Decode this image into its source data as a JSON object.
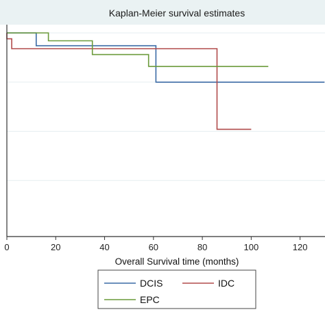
{
  "chart_data": {
    "type": "line",
    "title": "Kaplan-Meier survival estimates",
    "xlabel": "Overall Survival time (months)",
    "ylabel": "",
    "xlim": [
      0,
      130
    ],
    "ylim": [
      0,
      1
    ],
    "x_ticks": [
      0,
      20,
      40,
      60,
      80,
      100,
      120
    ],
    "x_tick_labels": [
      "0",
      "20",
      "40",
      "60",
      "80",
      "100",
      "120"
    ],
    "y_gridlines": [
      0.25,
      0.5,
      0.75,
      1.0
    ],
    "grid": true,
    "legend_position": "bottom",
    "step": true,
    "series": [
      {
        "name": "DCIS",
        "color": "#3a6aa5",
        "x": [
          0,
          12,
          12,
          61,
          61,
          130
        ],
        "y": [
          1.0,
          1.0,
          0.935,
          0.935,
          0.75,
          0.75
        ]
      },
      {
        "name": "IDC",
        "color": "#b04a4a",
        "x": [
          0,
          0,
          2,
          2,
          86,
          86,
          100
        ],
        "y": [
          1.0,
          0.97,
          0.97,
          0.92,
          0.92,
          0.51,
          0.51
        ]
      },
      {
        "name": "EPC",
        "color": "#6a9a3a",
        "x": [
          0,
          17,
          17,
          35,
          35,
          35,
          58,
          58,
          107
        ],
        "y": [
          1.0,
          1.0,
          0.96,
          0.96,
          0.94,
          0.89,
          0.89,
          0.83,
          0.83
        ]
      }
    ]
  }
}
